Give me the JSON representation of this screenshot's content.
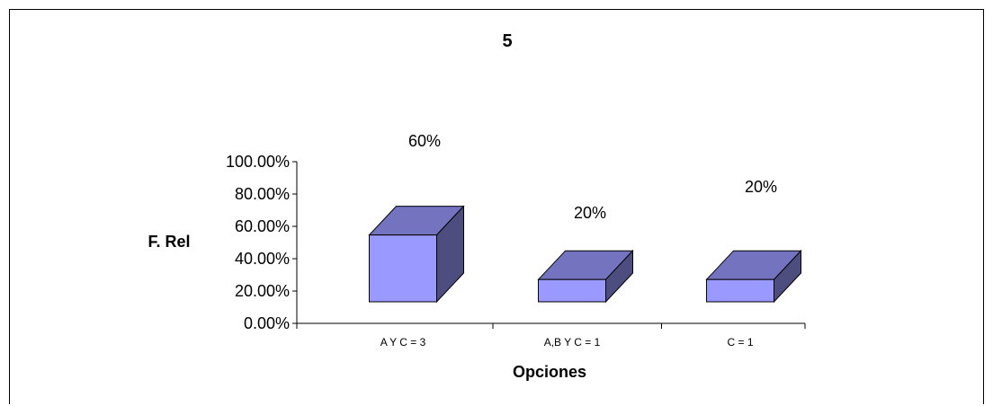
{
  "chart_data": {
    "type": "bar",
    "style": "3d-column",
    "title": "5",
    "xlabel": "Opciones",
    "ylabel": "F. Rel",
    "categories": [
      "A Y C = 3",
      "A,B Y C = 1",
      "C = 1"
    ],
    "values": [
      0.6,
      0.2,
      0.2
    ],
    "data_labels": [
      "60%",
      "20%",
      "20%"
    ],
    "yticks": [
      0,
      0.2,
      0.4,
      0.6,
      0.8,
      1.0
    ],
    "ytick_labels": [
      "0.00%",
      "20.00%",
      "40.00%",
      "60.00%",
      "80.00%",
      "100.00%"
    ],
    "ylim": [
      0,
      1.0
    ],
    "grid": false,
    "legend": "none",
    "colors": {
      "front": "#9999ff",
      "top": "#7373c0",
      "side": "#4d4d80",
      "outline": "#000000"
    }
  }
}
